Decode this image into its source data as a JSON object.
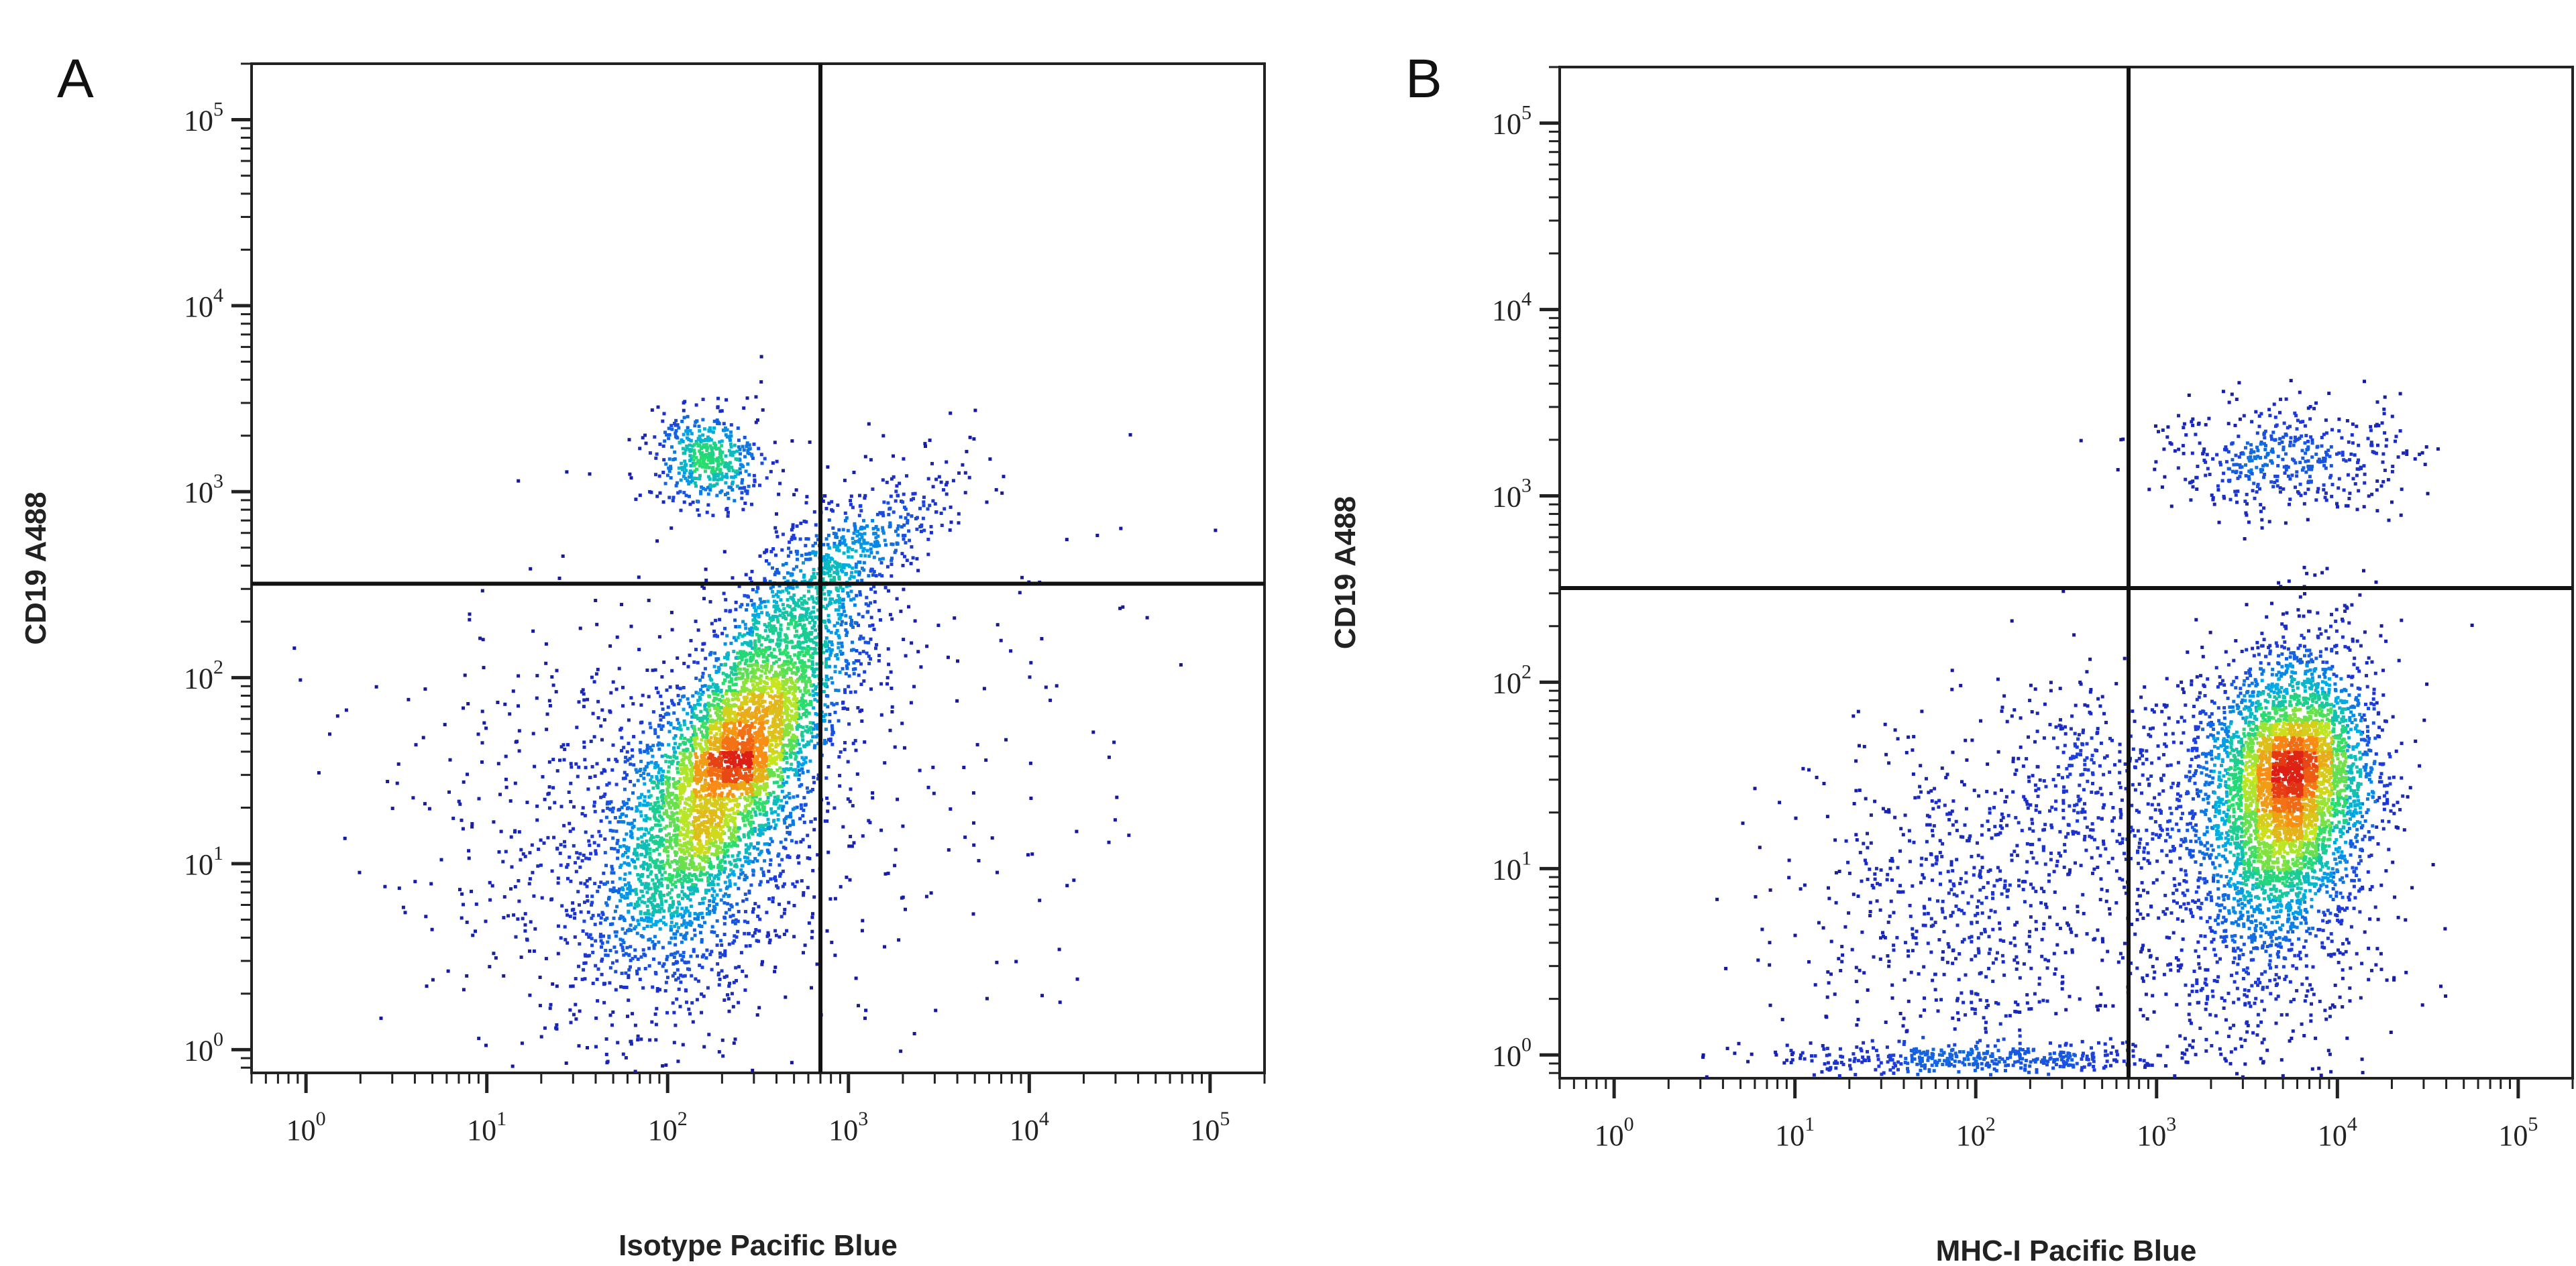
{
  "chart_data": [
    {
      "type": "scatter",
      "panel_label": "A",
      "xlabel": "Isotype Pacific Blue",
      "ylabel": "CD19 A488",
      "x_scale": "log",
      "y_scale": "log",
      "xlim": [
        0.5,
        200000
      ],
      "ylim": [
        0.75,
        200000
      ],
      "x_ticks": [
        {
          "base": "10",
          "exp": "0",
          "value": 1
        },
        {
          "base": "10",
          "exp": "1",
          "value": 10
        },
        {
          "base": "10",
          "exp": "2",
          "value": 100
        },
        {
          "base": "10",
          "exp": "3",
          "value": 1000
        },
        {
          "base": "10",
          "exp": "4",
          "value": 10000
        },
        {
          "base": "10",
          "exp": "5",
          "value": 100000
        }
      ],
      "y_ticks": [
        {
          "base": "10",
          "exp": "0",
          "value": 1
        },
        {
          "base": "10",
          "exp": "1",
          "value": 10
        },
        {
          "base": "10",
          "exp": "2",
          "value": 100
        },
        {
          "base": "10",
          "exp": "3",
          "value": 1000
        },
        {
          "base": "10",
          "exp": "4",
          "value": 10000
        },
        {
          "base": "10",
          "exp": "5",
          "value": 100000
        }
      ],
      "quadrant_gate": {
        "x": 700,
        "y": 320
      },
      "colormap": "density-jet",
      "populations": [
        {
          "cx": 260,
          "cy": 45,
          "sx_log": 0.33,
          "sy_log": 0.5,
          "rho": 0.72,
          "weight": 0.62
        },
        {
          "cx": 130,
          "cy": 10,
          "sx_log": 0.4,
          "sy_log": 0.5,
          "rho": 0.25,
          "weight": 0.16
        },
        {
          "cx": 170,
          "cy": 1500,
          "sx_log": 0.16,
          "sy_log": 0.13,
          "rho": 0.0,
          "weight": 0.07
        },
        {
          "cx": 1200,
          "cy": 500,
          "sx_log": 0.28,
          "sy_log": 0.2,
          "rho": 0.8,
          "weight": 0.05
        },
        {
          "cx": 40,
          "cy": 20,
          "sx_log": 0.6,
          "sy_log": 0.6,
          "rho": 0.0,
          "weight": 0.06
        },
        {
          "cx": 900,
          "cy": 40,
          "sx_log": 0.9,
          "sy_log": 0.8,
          "rho": 0.0,
          "weight": 0.04
        }
      ]
    },
    {
      "type": "scatter",
      "panel_label": "B",
      "xlabel": "MHC-I Pacific Blue",
      "ylabel": "CD19 A488",
      "x_scale": "log",
      "y_scale": "log",
      "xlim": [
        0.5,
        200000
      ],
      "ylim": [
        0.75,
        200000
      ],
      "x_ticks": [
        {
          "base": "10",
          "exp": "0",
          "value": 1
        },
        {
          "base": "10",
          "exp": "1",
          "value": 10
        },
        {
          "base": "10",
          "exp": "2",
          "value": 100
        },
        {
          "base": "10",
          "exp": "3",
          "value": 1000
        },
        {
          "base": "10",
          "exp": "4",
          "value": 10000
        },
        {
          "base": "10",
          "exp": "5",
          "value": 100000
        }
      ],
      "y_ticks": [
        {
          "base": "10",
          "exp": "0",
          "value": 1
        },
        {
          "base": "10",
          "exp": "1",
          "value": 10
        },
        {
          "base": "10",
          "exp": "2",
          "value": 100
        },
        {
          "base": "10",
          "exp": "3",
          "value": 1000
        },
        {
          "base": "10",
          "exp": "4",
          "value": 10000
        },
        {
          "base": "10",
          "exp": "5",
          "value": 100000
        }
      ],
      "quadrant_gate": {
        "x": 700,
        "y": 320
      },
      "colormap": "density-jet",
      "populations": [
        {
          "cx": 5500,
          "cy": 30,
          "sx_log": 0.22,
          "sy_log": 0.35,
          "rho": 0.1,
          "weight": 0.55
        },
        {
          "cx": 3000,
          "cy": 8,
          "sx_log": 0.38,
          "sy_log": 0.55,
          "rho": 0.0,
          "weight": 0.17
        },
        {
          "cx": 5000,
          "cy": 1600,
          "sx_log": 0.35,
          "sy_log": 0.16,
          "rho": 0.0,
          "weight": 0.07
        },
        {
          "cx": 80,
          "cy": 6,
          "sx_log": 0.45,
          "sy_log": 0.5,
          "rho": 0.0,
          "weight": 0.1
        },
        {
          "cx": 400,
          "cy": 30,
          "sx_log": 0.25,
          "sy_log": 0.3,
          "rho": 0.0,
          "weight": 0.05
        },
        {
          "cx": 100,
          "cy": 0.95,
          "sx_log": 0.6,
          "sy_log": 0.04,
          "rho": 0.0,
          "weight": 0.06
        }
      ]
    }
  ]
}
